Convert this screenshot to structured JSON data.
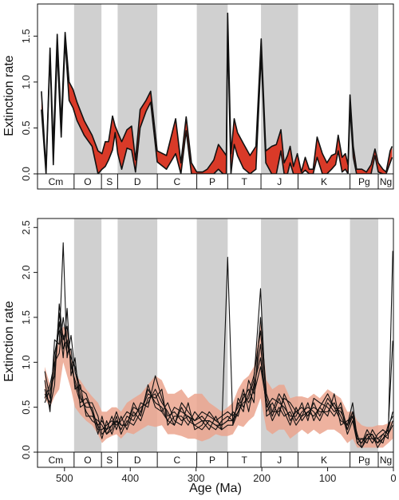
{
  "chart_data": [
    {
      "type": "area",
      "panel": "top",
      "ylabel": "Extinction rate",
      "xlabel": "",
      "xlim": [
        541,
        0
      ],
      "ylim": [
        0,
        1.85
      ],
      "y_ticks": [
        0.0,
        0.5,
        1.0,
        1.5
      ],
      "y_tick_labels": [
        "0.0",
        "0.5",
        "1.0",
        "1.5"
      ],
      "band_color": "#d93a28",
      "x": [
        535,
        528,
        522,
        517,
        511,
        505,
        499,
        493,
        487,
        481,
        470,
        458,
        449,
        443,
        438,
        433,
        427,
        423,
        419,
        413,
        405,
        398,
        392,
        385,
        376,
        369,
        359,
        345,
        331,
        323,
        315,
        307,
        299,
        290,
        283,
        273,
        266,
        259,
        254,
        252,
        247,
        242,
        237,
        228,
        218,
        209,
        201,
        194,
        185,
        178,
        171,
        166,
        161,
        157,
        152,
        146,
        140,
        134,
        128,
        122,
        116,
        108,
        101,
        94,
        88,
        84,
        78,
        73,
        69,
        66,
        61,
        56,
        48,
        41,
        34,
        28,
        23,
        16,
        11,
        5,
        2
      ],
      "lower": [
        0.7,
        0.0,
        1.3,
        0.1,
        1.35,
        0.4,
        1.45,
        0.8,
        0.72,
        0.58,
        0.42,
        0.3,
        0.0,
        0.05,
        0.08,
        0.15,
        0.26,
        0.45,
        0.22,
        0.05,
        0.28,
        0.26,
        0.02,
        0.5,
        0.68,
        0.78,
        0.13,
        0.05,
        0.22,
        0.0,
        0.47,
        0.0,
        0.0,
        0.0,
        0.0,
        0.0,
        0.05,
        0.0,
        0.0,
        1.55,
        0.0,
        0.32,
        0.2,
        0.06,
        0.0,
        0.05,
        1.3,
        0.12,
        0.0,
        0.0,
        0.25,
        0.0,
        0.0,
        0.12,
        0.0,
        0.0,
        0.0,
        0.04,
        0.0,
        0.0,
        0.18,
        0.0,
        0.0,
        0.05,
        0.1,
        0.25,
        0.02,
        0.05,
        0.0,
        0.72,
        0.18,
        0.0,
        0.0,
        0.0,
        0.0,
        0.2,
        0.02,
        0.0,
        0.0,
        0.12,
        0.18
      ],
      "upper": [
        0.9,
        0.05,
        1.37,
        0.3,
        1.52,
        0.55,
        1.54,
        1.0,
        0.92,
        0.78,
        0.58,
        0.42,
        0.25,
        0.22,
        0.35,
        0.35,
        0.63,
        0.52,
        0.45,
        0.35,
        0.48,
        0.52,
        0.15,
        0.7,
        0.8,
        0.9,
        0.25,
        0.2,
        0.6,
        0.12,
        0.62,
        0.12,
        0.02,
        0.02,
        0.05,
        0.15,
        0.32,
        0.25,
        0.2,
        1.75,
        0.22,
        0.6,
        0.45,
        0.33,
        0.2,
        0.3,
        1.47,
        0.25,
        0.3,
        0.32,
        0.48,
        0.12,
        0.2,
        0.3,
        0.08,
        0.22,
        0.02,
        0.18,
        0.05,
        0.05,
        0.4,
        0.22,
        0.12,
        0.2,
        0.22,
        0.42,
        0.18,
        0.22,
        0.1,
        0.86,
        0.3,
        0.05,
        0.05,
        0.02,
        0.1,
        0.27,
        0.12,
        0.05,
        0.02,
        0.25,
        0.3
      ]
    },
    {
      "type": "line",
      "panel": "bottom",
      "ylabel": "Extinction rate",
      "xlabel": "Age (Ma)",
      "xlim": [
        541,
        0
      ],
      "ylim": [
        0,
        2.6
      ],
      "y_ticks": [
        0.0,
        0.5,
        1.0,
        1.5,
        2.0,
        2.5
      ],
      "y_tick_labels": [
        "0.0",
        "0.5",
        "1.0",
        "1.5",
        "2.0",
        "2.5"
      ],
      "x_ticks": [
        500,
        400,
        300,
        200,
        100,
        0
      ],
      "x_tick_labels": [
        "500",
        "400",
        "300",
        "200",
        "100",
        "0"
      ],
      "fill_color": "#eba58e",
      "x": [
        530,
        522,
        515,
        508,
        502,
        496,
        490,
        484,
        476,
        467,
        458,
        449,
        443,
        436,
        428,
        421,
        414,
        405,
        395,
        384,
        373,
        362,
        352,
        343,
        333,
        322,
        312,
        302,
        291,
        280,
        270,
        261,
        252,
        244,
        236,
        228,
        220,
        212,
        202,
        193,
        184,
        174,
        166,
        157,
        148,
        139,
        130,
        121,
        112,
        100,
        90,
        80,
        70,
        62,
        55,
        48,
        40,
        32,
        24,
        16,
        8,
        1
      ],
      "fill_lower": [
        0.6,
        0.5,
        0.62,
        0.7,
        1.0,
        0.85,
        0.7,
        0.5,
        0.42,
        0.35,
        0.3,
        0.2,
        0.1,
        0.15,
        0.18,
        0.2,
        0.15,
        0.22,
        0.2,
        0.25,
        0.3,
        0.28,
        0.3,
        0.2,
        0.2,
        0.18,
        0.15,
        0.15,
        0.12,
        0.15,
        0.2,
        0.18,
        0.18,
        0.2,
        0.3,
        0.28,
        0.35,
        0.4,
        0.6,
        0.25,
        0.2,
        0.25,
        0.25,
        0.15,
        0.2,
        0.25,
        0.2,
        0.25,
        0.2,
        0.25,
        0.25,
        0.2,
        0.1,
        0.15,
        0.05,
        0.05,
        0.05,
        0.05,
        0.05,
        0.05,
        0.1,
        0.15
      ],
      "fill_upper": [
        0.95,
        0.75,
        1.05,
        1.25,
        1.4,
        1.35,
        1.1,
        0.85,
        0.8,
        0.7,
        0.62,
        0.55,
        0.45,
        0.45,
        0.5,
        0.5,
        0.45,
        0.55,
        0.6,
        0.65,
        0.75,
        0.85,
        0.8,
        0.65,
        0.65,
        0.7,
        0.6,
        0.65,
        0.65,
        0.55,
        0.5,
        0.45,
        0.5,
        0.55,
        0.7,
        0.8,
        0.85,
        0.95,
        1.45,
        0.8,
        0.7,
        0.75,
        0.75,
        0.6,
        0.62,
        0.62,
        0.6,
        0.65,
        0.6,
        0.7,
        0.65,
        0.6,
        0.45,
        0.45,
        0.35,
        0.3,
        0.28,
        0.28,
        0.3,
        0.3,
        0.32,
        0.35
      ],
      "series": [
        {
          "values": [
            0.65,
            0.55,
            0.95,
            1.55,
            1.15,
            1.25,
            1.0,
            0.75,
            0.55,
            0.6,
            0.45,
            0.2,
            0.4,
            0.2,
            0.3,
            0.45,
            0.3,
            0.3,
            0.55,
            0.4,
            0.75,
            0.5,
            0.45,
            0.35,
            0.3,
            0.5,
            0.35,
            0.3,
            0.25,
            0.35,
            0.3,
            0.25,
            2.17,
            0.3,
            0.45,
            0.55,
            0.6,
            0.8,
            1.82,
            0.4,
            0.45,
            0.65,
            0.55,
            0.35,
            0.45,
            0.5,
            0.4,
            0.55,
            0.4,
            0.6,
            0.5,
            0.45,
            0.3,
            0.55,
            0.15,
            0.1,
            0.25,
            0.15,
            0.1,
            0.2,
            0.15,
            2.24
          ]
        },
        {
          "values": [
            0.8,
            0.45,
            1.25,
            1.2,
            2.33,
            1.05,
            1.3,
            0.9,
            0.65,
            0.45,
            0.35,
            0.3,
            0.15,
            0.35,
            0.2,
            0.35,
            0.25,
            0.4,
            0.35,
            0.55,
            0.5,
            0.85,
            0.6,
            0.4,
            0.45,
            0.35,
            0.4,
            0.35,
            0.4,
            0.3,
            0.25,
            0.35,
            0.4,
            0.35,
            0.55,
            0.45,
            0.8,
            0.65,
            0.95,
            0.55,
            0.35,
            0.5,
            0.4,
            0.45,
            0.3,
            0.4,
            0.55,
            0.35,
            0.5,
            0.4,
            0.65,
            0.3,
            0.35,
            0.4,
            0.2,
            0.05,
            0.15,
            0.2,
            0.05,
            0.15,
            0.25,
            1.24
          ]
        },
        {
          "values": [
            0.55,
            0.7,
            0.85,
            1.45,
            1.05,
            1.6,
            0.85,
            1.05,
            0.5,
            0.55,
            0.55,
            0.4,
            0.2,
            0.25,
            0.4,
            0.25,
            0.4,
            0.25,
            0.45,
            0.35,
            0.6,
            0.65,
            0.45,
            0.55,
            0.35,
            0.3,
            0.55,
            0.25,
            0.3,
            0.45,
            0.35,
            0.3,
            0.35,
            0.45,
            0.4,
            0.65,
            0.55,
            0.7,
            1.2,
            0.45,
            0.55,
            0.4,
            0.65,
            0.5,
            0.35,
            0.45,
            0.5,
            0.45,
            0.35,
            0.55,
            0.45,
            0.5,
            0.2,
            0.35,
            0.1,
            0.15,
            0.1,
            0.25,
            0.15,
            0.1,
            0.3,
            0.4
          ]
        },
        {
          "values": [
            0.9,
            0.6,
            1.1,
            1.35,
            1.3,
            1.1,
            1.15,
            0.7,
            0.75,
            0.4,
            0.4,
            0.35,
            0.3,
            0.2,
            0.25,
            0.4,
            0.2,
            0.35,
            0.3,
            0.45,
            0.65,
            0.6,
            0.7,
            0.3,
            0.4,
            0.4,
            0.3,
            0.45,
            0.35,
            0.25,
            0.4,
            0.25,
            0.3,
            0.3,
            0.6,
            0.5,
            0.65,
            0.85,
            1.35,
            0.6,
            0.4,
            0.6,
            0.45,
            0.3,
            0.5,
            0.35,
            0.45,
            0.5,
            0.45,
            0.45,
            0.55,
            0.4,
            0.25,
            0.45,
            0.15,
            0.1,
            0.2,
            0.1,
            0.2,
            0.25,
            0.2,
            0.35
          ]
        },
        {
          "values": [
            0.7,
            0.5,
            0.75,
            1.65,
            1.25,
            1.4,
            0.95,
            0.8,
            0.6,
            0.5,
            0.5,
            0.25,
            0.25,
            0.3,
            0.35,
            0.3,
            0.35,
            0.45,
            0.4,
            0.5,
            0.55,
            0.7,
            0.55,
            0.45,
            0.3,
            0.55,
            0.45,
            0.35,
            0.45,
            0.4,
            0.35,
            0.4,
            0.45,
            0.4,
            0.5,
            0.7,
            0.45,
            0.75,
            1.05,
            0.5,
            0.6,
            0.55,
            0.5,
            0.4,
            0.4,
            0.55,
            0.35,
            0.6,
            0.55,
            0.5,
            0.4,
            0.55,
            0.25,
            0.4,
            0.1,
            0.05,
            0.2,
            0.2,
            0.1,
            0.15,
            0.2,
            0.3
          ]
        },
        {
          "values": [
            0.6,
            0.75,
            1.0,
            1.1,
            1.5,
            1.2,
            1.05,
            0.95,
            0.7,
            0.65,
            0.45,
            0.3,
            0.35,
            0.25,
            0.3,
            0.35,
            0.3,
            0.3,
            0.5,
            0.45,
            0.7,
            0.55,
            0.5,
            0.35,
            0.5,
            0.45,
            0.4,
            0.3,
            0.35,
            0.35,
            0.3,
            0.3,
            0.35,
            0.35,
            0.45,
            0.6,
            0.7,
            0.55,
            1.5,
            0.65,
            0.45,
            0.45,
            0.6,
            0.55,
            0.45,
            0.4,
            0.45,
            0.4,
            0.5,
            0.65,
            0.5,
            0.35,
            0.3,
            0.45,
            0.15,
            0.15,
            0.15,
            0.15,
            0.15,
            0.2,
            0.25,
            0.45
          ]
        }
      ]
    }
  ],
  "periods": [
    {
      "label": "Cm",
      "start": 541,
      "end": 485.4,
      "shaded": false
    },
    {
      "label": "O",
      "start": 485.4,
      "end": 443.8,
      "shaded": true
    },
    {
      "label": "S",
      "start": 443.8,
      "end": 419.2,
      "shaded": false
    },
    {
      "label": "D",
      "start": 419.2,
      "end": 358.9,
      "shaded": true
    },
    {
      "label": "C",
      "start": 358.9,
      "end": 298.9,
      "shaded": false
    },
    {
      "label": "P",
      "start": 298.9,
      "end": 251.9,
      "shaded": true
    },
    {
      "label": "T",
      "start": 251.9,
      "end": 201.3,
      "shaded": false
    },
    {
      "label": "J",
      "start": 201.3,
      "end": 145.0,
      "shaded": true
    },
    {
      "label": "K",
      "start": 145.0,
      "end": 66.0,
      "shaded": false
    },
    {
      "label": "Pg",
      "start": 66.0,
      "end": 23.03,
      "shaded": true
    },
    {
      "label": "Ng",
      "start": 23.03,
      "end": 0,
      "shaded": false
    }
  ],
  "colors": {
    "shade": "#d0d0d0",
    "line": "#111111",
    "top_band": "#d93a28",
    "bottom_fill": "#eba58e"
  }
}
